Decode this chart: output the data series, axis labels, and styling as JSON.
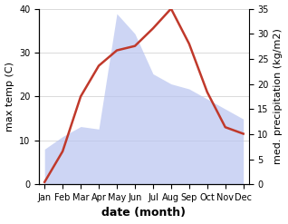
{
  "months": [
    "Jan",
    "Feb",
    "Mar",
    "Apr",
    "May",
    "Jun",
    "Jul",
    "Aug",
    "Sep",
    "Oct",
    "Nov",
    "Dec"
  ],
  "month_indices": [
    0,
    1,
    2,
    3,
    4,
    5,
    6,
    7,
    8,
    9,
    10,
    11
  ],
  "max_temp": [
    0.5,
    7.5,
    20.0,
    27.0,
    30.5,
    31.5,
    35.5,
    40.0,
    32.0,
    21.0,
    13.0,
    11.5
  ],
  "precipitation": [
    7.0,
    9.5,
    11.5,
    11.0,
    34.0,
    30.0,
    22.0,
    20.0,
    19.0,
    17.0,
    15.0,
    13.0
  ],
  "temp_ylim": [
    0,
    40
  ],
  "precip_ylim": [
    0,
    35
  ],
  "fill_color": "#b8c4f0",
  "fill_alpha": 0.7,
  "line_color": "#c0392b",
  "line_width": 1.8,
  "xlabel": "date (month)",
  "ylabel_left": "max temp (C)",
  "ylabel_right": "med. precipitation (kg/m2)",
  "bg_color": "#ffffff",
  "grid_color": "#cccccc",
  "tick_fontsize": 7,
  "label_fontsize": 8,
  "xlabel_fontsize": 9,
  "temp_yticks": [
    0,
    10,
    20,
    30,
    40
  ],
  "precip_yticks": [
    0,
    5,
    10,
    15,
    20,
    25,
    30,
    35
  ]
}
